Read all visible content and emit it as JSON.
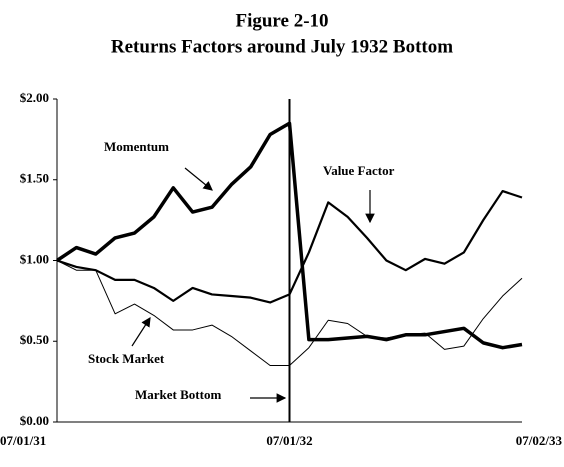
{
  "chart_data": {
    "type": "line",
    "title": "Figure 2-10",
    "subtitle": "Returns Factors around July 1932 Bottom",
    "categories": [
      "07/01/31",
      null,
      null,
      null,
      null,
      null,
      null,
      null,
      null,
      null,
      null,
      null,
      "07/01/32",
      null,
      null,
      null,
      null,
      null,
      null,
      null,
      null,
      null,
      null,
      null,
      "07/02/33"
    ],
    "series": [
      {
        "name": "Momentum",
        "color": "#000000",
        "values": [
          1.0,
          1.08,
          1.04,
          1.14,
          1.17,
          1.27,
          1.45,
          1.3,
          1.33,
          1.47,
          1.58,
          1.78,
          1.85,
          0.51,
          0.51,
          0.52,
          0.53,
          0.51,
          0.54,
          0.54,
          0.56,
          0.58,
          0.49,
          0.46,
          0.48
        ]
      },
      {
        "name": "Value Factor",
        "color": "#000000",
        "values": [
          1.0,
          0.96,
          0.94,
          0.88,
          0.88,
          0.83,
          0.75,
          0.83,
          0.79,
          0.78,
          0.77,
          0.74,
          0.79,
          1.05,
          1.36,
          1.27,
          1.14,
          1.0,
          0.94,
          1.01,
          0.98,
          1.05,
          1.25,
          1.43,
          1.39
        ]
      },
      {
        "name": "Stock Market",
        "color": "#000000",
        "values": [
          1.0,
          0.94,
          0.94,
          0.67,
          0.73,
          0.66,
          0.57,
          0.57,
          0.6,
          0.53,
          0.44,
          0.35,
          0.35,
          0.46,
          0.63,
          0.61,
          0.53,
          0.52,
          0.54,
          0.55,
          0.45,
          0.47,
          0.64,
          0.78,
          0.89
        ]
      }
    ],
    "annotations": [
      "Market Bottom"
    ],
    "ylim": [
      0,
      2
    ],
    "yticks": [
      {
        "value": 0,
        "label": "$0.00"
      },
      {
        "value": 0.5,
        "label": "$0.50"
      },
      {
        "value": 1,
        "label": "$1.00"
      },
      {
        "value": 1.5,
        "label": "$1.50"
      },
      {
        "value": 2,
        "label": "$2.00"
      }
    ],
    "grid": false
  }
}
